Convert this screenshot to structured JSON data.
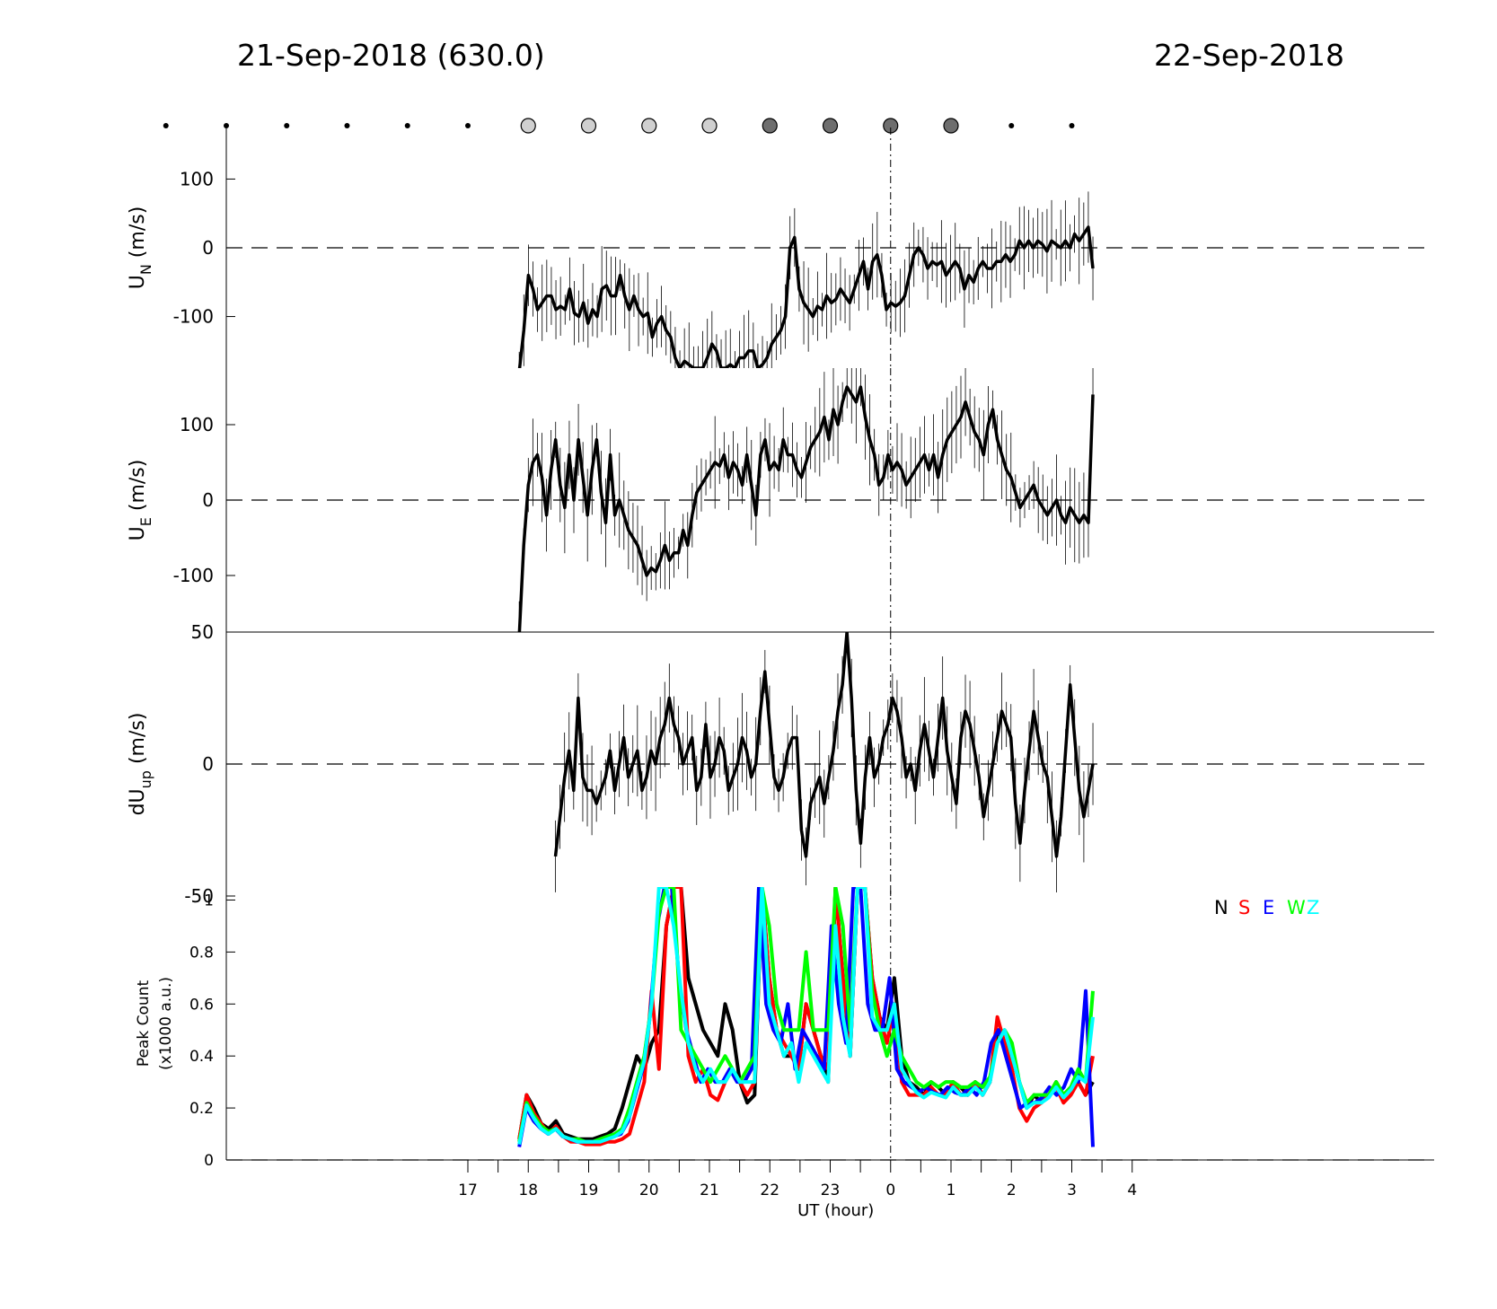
{
  "header": {
    "left": "21-Sep-2018 (630.0)",
    "right": "22-Sep-2018"
  },
  "colors": {
    "N": "#000000",
    "S": "#ff0000",
    "E": "#0000ff",
    "W": "#00ff00",
    "Z": "#00ffff",
    "moon_light": "#d0d0d0",
    "moon_dark": "#6e6e6e"
  },
  "chart_data": {
    "type": "line",
    "moon_markers": {
      "small_dot_hours": [
        -6,
        -5,
        -4,
        -3,
        -2,
        -1,
        3,
        4,
        5,
        6,
        7,
        8,
        9
      ],
      "light_circle_hours": [
        0,
        1,
        2,
        3
      ],
      "dark_circle_hours": [
        4,
        5,
        6,
        7
      ]
    },
    "x": {
      "label": "UT (hour)",
      "tick_labels": [
        "17",
        "18",
        "19",
        "20",
        "21",
        "22",
        "23",
        "0",
        "1",
        "2",
        "3",
        "4"
      ],
      "major_ticks_hours": [
        -1,
        0,
        1,
        2,
        3,
        4,
        5,
        6,
        7,
        8,
        9,
        10
      ],
      "minor_ticks_hours": [
        -0.5,
        0.5,
        1.5,
        2.5,
        3.5,
        4.5,
        5.5,
        6.5,
        7.5,
        8.5,
        9.5
      ],
      "range_hours_from_18UT": [
        -5,
        15
      ],
      "midnight_hour": 6
    },
    "panels": [
      {
        "name": "UN",
        "ylabel_main": "U",
        "ylabel_sub": "N",
        "ylabel_unit": " (m/s)",
        "ylim": [
          -175,
          175
        ],
        "yticks": [
          100,
          0,
          -100
        ],
        "ytick_labels": [
          "100",
          "0",
          "-100"
        ],
        "zero_line": true,
        "series": {
          "time_range_hours": [
            -0.15,
            9.35
          ],
          "values": [
            -180,
            -120,
            -40,
            -60,
            -90,
            -80,
            -70,
            -70,
            -90,
            -85,
            -90,
            -60,
            -95,
            -100,
            -80,
            -110,
            -90,
            -100,
            -60,
            -55,
            -70,
            -70,
            -40,
            -70,
            -90,
            -70,
            -90,
            -100,
            -95,
            -130,
            -110,
            -100,
            -120,
            -130,
            -160,
            -175,
            -165,
            -170,
            -175,
            -175,
            -175,
            -160,
            -140,
            -150,
            -175,
            -175,
            -170,
            -175,
            -160,
            -160,
            -150,
            -150,
            -175,
            -170,
            -160,
            -140,
            -130,
            -120,
            -100,
            0,
            15,
            -60,
            -80,
            -90,
            -100,
            -85,
            -90,
            -70,
            -80,
            -75,
            -60,
            -70,
            -80,
            -60,
            -40,
            -20,
            -60,
            -20,
            -10,
            -40,
            -90,
            -80,
            -85,
            -80,
            -70,
            -40,
            -10,
            0,
            -10,
            -30,
            -20,
            -25,
            -20,
            -40,
            -30,
            -20,
            -30,
            -60,
            -40,
            -50,
            -30,
            -20,
            -30,
            -30,
            -20,
            -20,
            -10,
            -20,
            -10,
            10,
            0,
            10,
            0,
            10,
            5,
            -5,
            10,
            5,
            0,
            10,
            0,
            20,
            10,
            20,
            30,
            -30
          ]
        }
      },
      {
        "name": "UE",
        "ylabel_main": "U",
        "ylabel_sub": "E",
        "ylabel_unit": " (m/s)",
        "ylim": [
          -175,
          175
        ],
        "yticks": [
          100,
          0,
          -100
        ],
        "ytick_labels": [
          "100",
          "0",
          "-100"
        ],
        "zero_line": true,
        "series": {
          "time_range_hours": [
            -0.15,
            9.35
          ],
          "values": [
            -180,
            -60,
            20,
            50,
            60,
            30,
            -20,
            40,
            80,
            20,
            -10,
            60,
            0,
            80,
            30,
            -20,
            40,
            80,
            10,
            -30,
            60,
            -20,
            0,
            -20,
            -40,
            -50,
            -60,
            -80,
            -100,
            -90,
            -95,
            -80,
            -60,
            -80,
            -70,
            -70,
            -40,
            -60,
            -20,
            10,
            20,
            30,
            40,
            50,
            45,
            60,
            30,
            50,
            40,
            20,
            60,
            20,
            -20,
            60,
            80,
            40,
            50,
            40,
            80,
            60,
            60,
            40,
            30,
            50,
            70,
            80,
            90,
            110,
            80,
            120,
            100,
            130,
            150,
            140,
            130,
            150,
            110,
            80,
            60,
            20,
            30,
            60,
            40,
            50,
            40,
            20,
            30,
            40,
            50,
            60,
            40,
            60,
            30,
            60,
            80,
            90,
            100,
            110,
            130,
            110,
            90,
            80,
            60,
            100,
            120,
            80,
            60,
            40,
            30,
            10,
            -10,
            0,
            10,
            20,
            0,
            -10,
            -20,
            -10,
            0,
            -20,
            -30,
            -10,
            -20,
            -30,
            -20,
            -30,
            140
          ]
        }
      },
      {
        "name": "dUup",
        "ylabel_main": "dU",
        "ylabel_sub": "up",
        "ylabel_unit": " (m/s)",
        "ylim": [
          -50,
          50
        ],
        "yticks": [
          50,
          0,
          -50
        ],
        "ytick_labels": [
          "50",
          "0",
          "-50"
        ],
        "zero_line": true,
        "series": {
          "time_range_hours": [
            0.45,
            9.35
          ],
          "values": [
            -35,
            -20,
            -5,
            5,
            -10,
            25,
            -5,
            -10,
            -10,
            -15,
            -10,
            -5,
            5,
            -10,
            0,
            10,
            -5,
            0,
            5,
            -10,
            -5,
            5,
            0,
            10,
            15,
            25,
            15,
            10,
            0,
            5,
            10,
            -10,
            -5,
            15,
            -5,
            0,
            10,
            5,
            -10,
            -5,
            0,
            10,
            5,
            -5,
            0,
            20,
            35,
            15,
            -5,
            -10,
            -5,
            5,
            10,
            10,
            -25,
            -35,
            -15,
            -10,
            -5,
            -15,
            -5,
            5,
            20,
            30,
            50,
            25,
            -10,
            -30,
            -5,
            10,
            -5,
            0,
            10,
            15,
            25,
            20,
            10,
            -5,
            0,
            -10,
            5,
            15,
            5,
            -5,
            10,
            25,
            5,
            -5,
            -15,
            10,
            20,
            15,
            5,
            -5,
            -20,
            -10,
            0,
            10,
            20,
            15,
            10,
            -15,
            -30,
            -10,
            5,
            20,
            10,
            0,
            -5,
            -20,
            -35,
            -20,
            5,
            30,
            10,
            -10,
            -20,
            -10,
            0
          ]
        }
      },
      {
        "name": "PeakCount",
        "ylabel_line1": "Peak Count",
        "ylabel_line2": "(x1000 a.u.)",
        "ylim": [
          0,
          1.05
        ],
        "yticks": [
          1,
          0.8,
          0.6,
          0.4,
          0.2,
          0
        ],
        "ytick_labels": [
          "1",
          "0.8",
          "0.6",
          "0.4",
          "0.2",
          "0"
        ],
        "legend": [
          "N",
          "S",
          "E",
          "W",
          "Z"
        ],
        "legend_position": "top-right",
        "time_range_hours": [
          -0.15,
          9.35
        ],
        "series": [
          {
            "name": "N",
            "values": [
              0.08,
              0.25,
              0.2,
              0.14,
              0.12,
              0.15,
              0.1,
              0.09,
              0.08,
              0.08,
              0.08,
              0.09,
              0.1,
              0.12,
              0.2,
              0.3,
              0.4,
              0.35,
              0.45,
              0.5,
              0.9,
              1.05,
              1.05,
              0.7,
              0.6,
              0.5,
              0.45,
              0.4,
              0.6,
              0.5,
              0.3,
              0.22,
              0.25,
              1.05,
              0.7,
              0.5,
              0.4,
              0.4,
              0.35,
              0.6,
              0.5,
              0.4,
              0.3,
              1.05,
              0.7,
              0.4,
              1.05,
              1.05,
              0.7,
              0.55,
              0.5,
              0.7,
              0.4,
              0.3,
              0.28,
              0.25,
              0.3,
              0.28,
              0.25,
              0.3,
              0.28,
              0.25,
              0.3,
              0.25,
              0.3,
              0.5,
              0.45,
              0.4,
              0.3,
              0.2,
              0.25,
              0.22,
              0.25,
              0.3,
              0.25,
              0.28,
              0.3,
              0.25,
              0.3
            ]
          },
          {
            "name": "S",
            "values": [
              0.08,
              0.25,
              0.18,
              0.14,
              0.1,
              0.13,
              0.09,
              0.07,
              0.07,
              0.06,
              0.06,
              0.06,
              0.07,
              0.07,
              0.08,
              0.1,
              0.2,
              0.3,
              0.65,
              0.35,
              0.9,
              1.05,
              1.05,
              0.4,
              0.3,
              0.35,
              0.25,
              0.23,
              0.3,
              0.35,
              0.3,
              0.25,
              0.3,
              1.05,
              0.7,
              0.5,
              0.45,
              0.4,
              0.35,
              0.6,
              0.5,
              0.4,
              0.35,
              1.05,
              0.7,
              0.4,
              1.05,
              1.05,
              0.7,
              0.55,
              0.45,
              0.6,
              0.3,
              0.25,
              0.25,
              0.25,
              0.28,
              0.25,
              0.25,
              0.3,
              0.25,
              0.25,
              0.3,
              0.25,
              0.3,
              0.55,
              0.45,
              0.35,
              0.2,
              0.15,
              0.2,
              0.22,
              0.25,
              0.28,
              0.22,
              0.25,
              0.3,
              0.25,
              0.4
            ]
          },
          {
            "name": "E",
            "values": [
              0.05,
              0.2,
              0.15,
              0.12,
              0.1,
              0.12,
              0.09,
              0.08,
              0.07,
              0.07,
              0.07,
              0.07,
              0.08,
              0.09,
              0.1,
              0.15,
              0.25,
              0.35,
              0.55,
              0.9,
              1.05,
              1.05,
              0.7,
              0.5,
              0.4,
              0.3,
              0.35,
              0.3,
              0.3,
              0.35,
              0.3,
              0.3,
              0.35,
              1.05,
              0.6,
              0.5,
              0.45,
              0.6,
              0.35,
              0.5,
              0.45,
              0.4,
              0.35,
              0.9,
              0.6,
              0.45,
              1.05,
              1.05,
              0.6,
              0.5,
              0.5,
              0.7,
              0.35,
              0.3,
              0.28,
              0.26,
              0.28,
              0.26,
              0.25,
              0.28,
              0.26,
              0.25,
              0.28,
              0.25,
              0.3,
              0.45,
              0.5,
              0.4,
              0.3,
              0.2,
              0.22,
              0.22,
              0.24,
              0.28,
              0.25,
              0.28,
              0.35,
              0.3,
              0.65,
              0.05
            ]
          },
          {
            "name": "W",
            "values": [
              0.07,
              0.22,
              0.17,
              0.13,
              0.11,
              0.12,
              0.09,
              0.08,
              0.08,
              0.07,
              0.07,
              0.08,
              0.09,
              0.1,
              0.12,
              0.2,
              0.3,
              0.4,
              0.6,
              0.95,
              1.05,
              1.05,
              0.5,
              0.45,
              0.4,
              0.35,
              0.3,
              0.35,
              0.4,
              0.35,
              0.3,
              0.35,
              0.4,
              1.05,
              0.9,
              0.6,
              0.5,
              0.5,
              0.5,
              0.8,
              0.5,
              0.5,
              0.5,
              1.05,
              0.9,
              0.5,
              1.05,
              1.05,
              0.65,
              0.5,
              0.4,
              0.5,
              0.4,
              0.35,
              0.3,
              0.28,
              0.3,
              0.28,
              0.3,
              0.3,
              0.28,
              0.28,
              0.3,
              0.28,
              0.32,
              0.45,
              0.5,
              0.45,
              0.3,
              0.22,
              0.25,
              0.25,
              0.25,
              0.3,
              0.25,
              0.28,
              0.35,
              0.3,
              0.65
            ]
          },
          {
            "name": "Z",
            "values": [
              0.06,
              0.21,
              0.16,
              0.12,
              0.1,
              0.12,
              0.09,
              0.08,
              0.07,
              0.07,
              0.07,
              0.07,
              0.08,
              0.09,
              0.11,
              0.17,
              0.28,
              0.38,
              0.6,
              1.05,
              1.05,
              0.9,
              0.65,
              0.45,
              0.35,
              0.3,
              0.35,
              0.3,
              0.3,
              0.35,
              0.3,
              0.3,
              0.3,
              1.05,
              0.6,
              0.5,
              0.4,
              0.45,
              0.3,
              0.45,
              0.4,
              0.35,
              0.3,
              0.9,
              0.55,
              0.4,
              1.05,
              1.05,
              0.55,
              0.5,
              0.5,
              0.6,
              0.35,
              0.3,
              0.26,
              0.24,
              0.26,
              0.25,
              0.24,
              0.28,
              0.25,
              0.25,
              0.28,
              0.25,
              0.3,
              0.45,
              0.5,
              0.4,
              0.3,
              0.2,
              0.22,
              0.22,
              0.24,
              0.28,
              0.24,
              0.27,
              0.32,
              0.3,
              0.55
            ]
          }
        ]
      }
    ]
  }
}
